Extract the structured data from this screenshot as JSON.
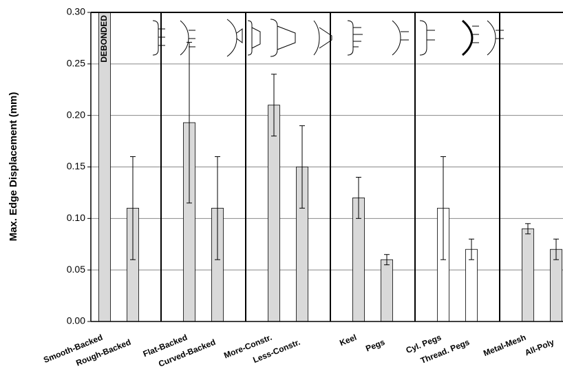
{
  "chart_data": {
    "type": "bar",
    "y_label": "Max. Edge Displacement (mm)",
    "categories": [
      "Smooth-Backed",
      "Rough-Backed",
      "Flat-Backed",
      "Curved-Backed",
      "More-Constr.",
      "Less-Constr.",
      "Keel",
      "Pegs",
      "Cyl. Pegs",
      "Thread. Pegs",
      "Metal-Mesh",
      "All-Poly"
    ],
    "values": [
      0.3,
      0.11,
      0.193,
      0.11,
      0.21,
      0.15,
      0.12,
      0.06,
      0.11,
      0.07,
      0.09,
      0.07
    ],
    "value_labels": [
      "DEBONDED",
      null,
      null,
      null,
      null,
      null,
      null,
      null,
      null,
      null,
      null,
      null
    ],
    "errors": [
      null,
      0.05,
      0.078,
      0.05,
      0.03,
      0.04,
      0.02,
      0.005,
      0.05,
      0.01,
      0.005,
      0.01
    ],
    "colors": [
      "#d9d9d9",
      "#d9d9d9",
      "#d9d9d9",
      "#d9d9d9",
      "#d9d9d9",
      "#d9d9d9",
      "#d9d9d9",
      "#d9d9d9",
      "#ffffff",
      "#ffffff",
      "#d9d9d9",
      "#d9d9d9"
    ],
    "ylim": [
      0,
      0.3
    ],
    "yticks": [
      {
        "value": 0,
        "label": "0.00"
      },
      {
        "value": 0.05,
        "label": "0.05"
      },
      {
        "value": 0.1,
        "label": "0.10"
      },
      {
        "value": 0.15,
        "label": "0.15"
      },
      {
        "value": 0.2,
        "label": "0.20"
      },
      {
        "value": 0.25,
        "label": "0.25"
      },
      {
        "value": 0.3,
        "label": "0.30"
      }
    ],
    "grid": true
  }
}
